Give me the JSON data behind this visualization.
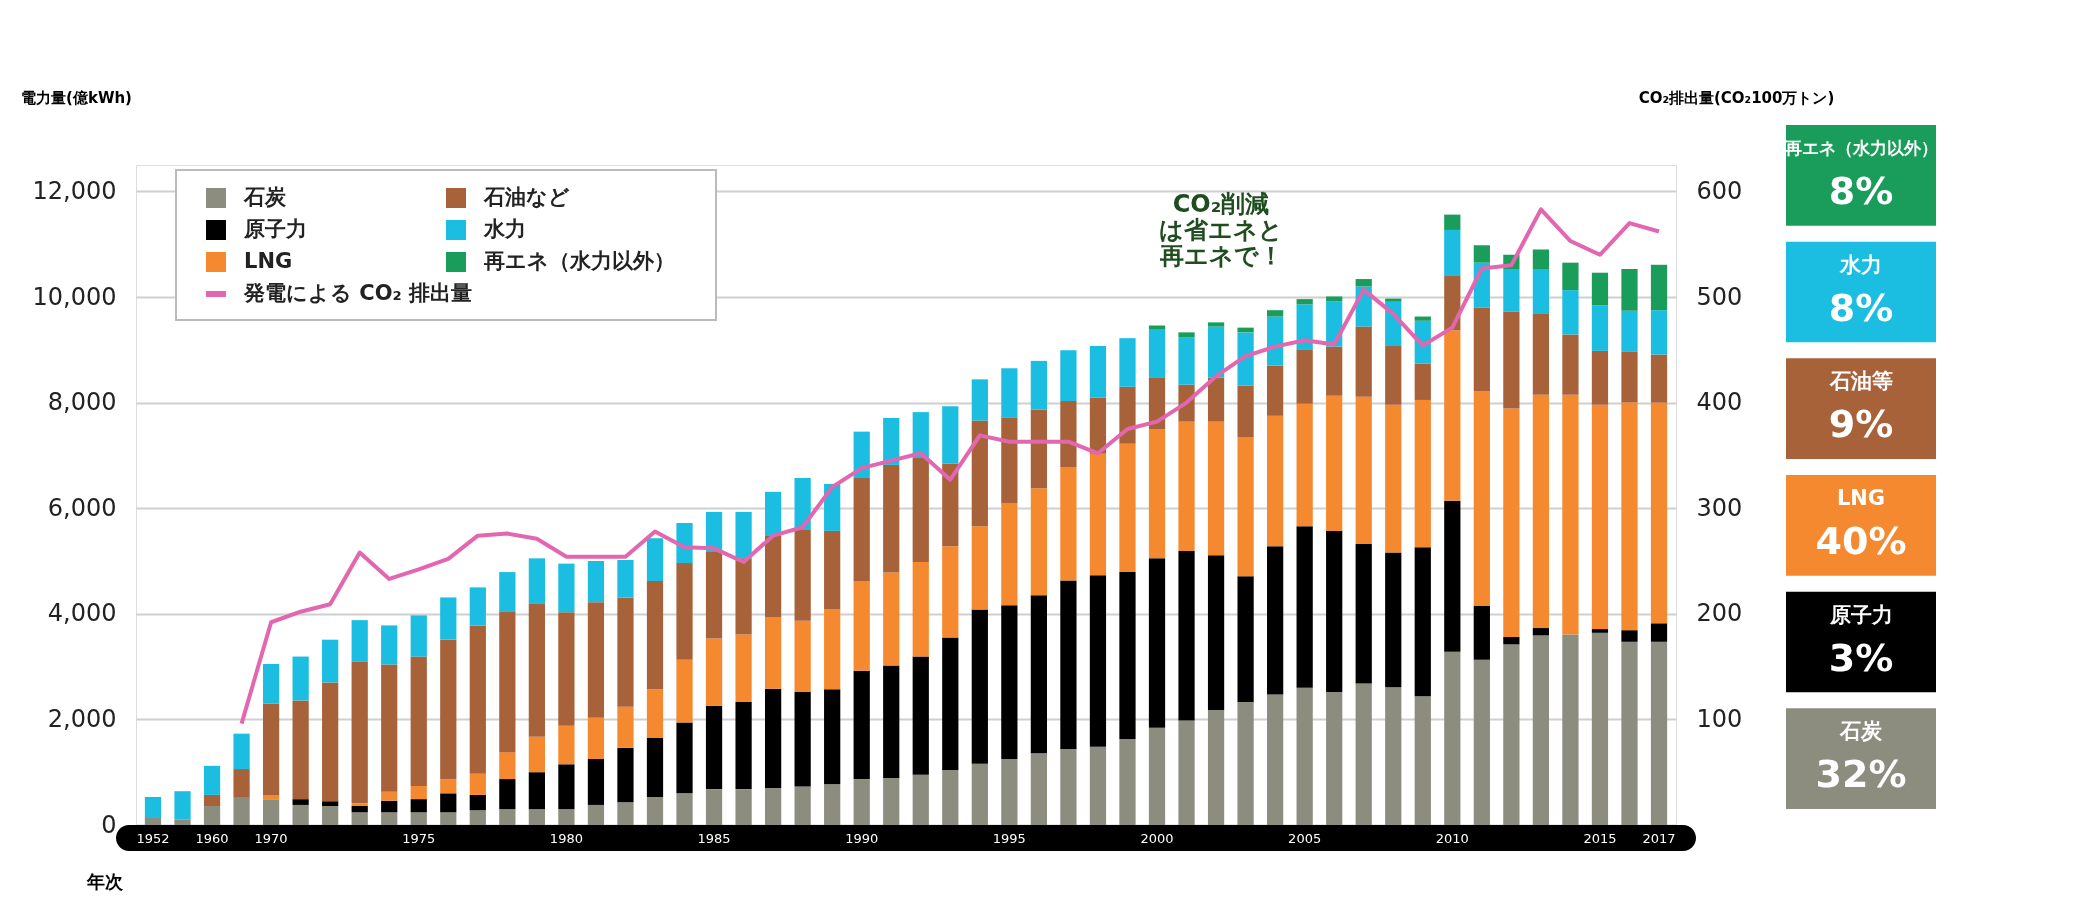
{
  "chart_data": {
    "type": "bar",
    "stacked": true,
    "xlabel": "年次",
    "ylabel": "電力量(億kWh)",
    "y2label": "CO₂排出量(CO₂100万トン)",
    "categories": [
      "1952",
      null,
      "1960",
      null,
      "1970",
      null,
      null,
      null,
      null,
      "1975",
      null,
      null,
      null,
      null,
      "1980",
      null,
      null,
      null,
      null,
      "1985",
      null,
      null,
      null,
      null,
      "1990",
      null,
      null,
      null,
      null,
      "1995",
      null,
      null,
      null,
      null,
      "2000",
      null,
      null,
      null,
      null,
      "2005",
      null,
      null,
      null,
      null,
      "2010",
      null,
      null,
      null,
      null,
      "2015",
      null,
      "2017"
    ],
    "series": [
      {
        "name": "石炭",
        "color": "#8c8c7f",
        "values": [
          150,
          100,
          360,
          515,
          490,
          380,
          360,
          240,
          240,
          240,
          240,
          280,
          300,
          300,
          300,
          380,
          430,
          530,
          600,
          680,
          680,
          700,
          730,
          770,
          870,
          890,
          950,
          1040,
          1160,
          1250,
          1360,
          1440,
          1480,
          1630,
          1840,
          1980,
          2180,
          2330,
          2470,
          2600,
          2520,
          2680,
          2610,
          2440,
          3280,
          3130,
          3420,
          3590,
          3610,
          3640,
          3470,
          3470
        ]
      },
      {
        "name": "原子力",
        "color": "#000000",
        "values": [
          0,
          0,
          0,
          0,
          0,
          110,
          90,
          120,
          220,
          250,
          360,
          290,
          570,
          700,
          850,
          870,
          1030,
          1120,
          1340,
          1580,
          1650,
          1880,
          1790,
          1800,
          2050,
          2130,
          2240,
          2510,
          2920,
          2910,
          2990,
          3190,
          3250,
          3160,
          3210,
          3210,
          2930,
          2380,
          2810,
          3060,
          3050,
          2640,
          2550,
          2820,
          2860,
          1020,
          140,
          140,
          0,
          70,
          220,
          350
        ]
      },
      {
        "name": "LNG",
        "color": "#f5892f",
        "values": [
          0,
          0,
          0,
          0,
          80,
          0,
          0,
          50,
          170,
          250,
          270,
          400,
          510,
          670,
          730,
          780,
          780,
          920,
          1190,
          1270,
          1280,
          1350,
          1350,
          1510,
          1690,
          1760,
          1790,
          1730,
          1580,
          1940,
          2030,
          2150,
          2300,
          2430,
          2440,
          2450,
          2530,
          2640,
          2470,
          2320,
          2560,
          2790,
          2800,
          2790,
          3230,
          4060,
          4330,
          4420,
          4540,
          4250,
          4310,
          4180
        ]
      },
      {
        "name": "石油など",
        "color": "#a8623a",
        "values": [
          0,
          0,
          210,
          545,
          1730,
          1870,
          2250,
          2680,
          2410,
          2450,
          2640,
          2810,
          2670,
          2530,
          2150,
          2190,
          2070,
          2050,
          1830,
          1640,
          1440,
          1560,
          1730,
          1490,
          1960,
          2040,
          1970,
          1560,
          2000,
          1610,
          1490,
          1250,
          1060,
          1080,
          990,
          700,
          830,
          970,
          950,
          1030,
          930,
          1330,
          1110,
          690,
          1040,
          1590,
          1830,
          1540,
          1140,
          1020,
          960,
          910
        ]
      },
      {
        "name": "水力",
        "color": "#1bbde0",
        "values": [
          380,
          540,
          550,
          670,
          750,
          830,
          810,
          790,
          740,
          780,
          800,
          720,
          740,
          850,
          920,
          780,
          710,
          810,
          760,
          760,
          880,
          820,
          970,
          890,
          880,
          890,
          870,
          1090,
          780,
          940,
          920,
          960,
          980,
          920,
          900,
          900,
          970,
          1010,
          930,
          850,
          860,
          760,
          840,
          810,
          860,
          850,
          810,
          840,
          840,
          860,
          780,
          840
        ]
      },
      {
        "name": "再エネ（水力以外）",
        "color": "#1a9c5a",
        "values": [
          0,
          0,
          0,
          0,
          0,
          0,
          0,
          0,
          0,
          0,
          0,
          0,
          0,
          0,
          0,
          0,
          0,
          0,
          0,
          0,
          0,
          0,
          0,
          0,
          0,
          0,
          0,
          0,
          0,
          0,
          0,
          0,
          0,
          0,
          80,
          90,
          80,
          90,
          120,
          100,
          90,
          140,
          60,
          80,
          290,
          330,
          270,
          370,
          520,
          620,
          790,
          860
        ]
      },
      {
        "name": "発電による CO₂ 排出量",
        "color": "#e266b0",
        "type": "line",
        "axis": "y2",
        "values": [
          null,
          null,
          null,
          96,
          192,
          202,
          209,
          258,
          233,
          242,
          252,
          274,
          276,
          271,
          254,
          254,
          254,
          278,
          263,
          262,
          249,
          274,
          282,
          320,
          338,
          345,
          352,
          327,
          369,
          363,
          363,
          363,
          352,
          375,
          382,
          400,
          425,
          444,
          453,
          459,
          455,
          507,
          484,
          454,
          471,
          527,
          530,
          583,
          553,
          540,
          570,
          562
        ]
      }
    ],
    "ylim": [
      0,
      12500
    ],
    "yticks": [
      0,
      {
        "value": 2000,
        "label": "2,000"
      },
      {
        "value": 4000,
        "label": "4,000"
      },
      {
        "value": 6000,
        "label": "6,000"
      },
      {
        "value": 8000,
        "label": "8,000"
      },
      {
        "value": 10000,
        "label": "10,000"
      },
      {
        "value": 12000,
        "label": "12,000"
      }
    ],
    "y2lim": [
      0,
      625
    ],
    "y2ticks": [
      100,
      200,
      300,
      400,
      500,
      600
    ],
    "grid": "y",
    "legend": "top left",
    "annotations": [
      "CO₂削減は省エネと再エネで！",
      "再エネ（水力以外）",
      "8%",
      "水力",
      "8%",
      "石油等",
      "9%",
      "LNG",
      "40%",
      "原子力",
      "3%",
      "石炭",
      "32%"
    ]
  }
}
